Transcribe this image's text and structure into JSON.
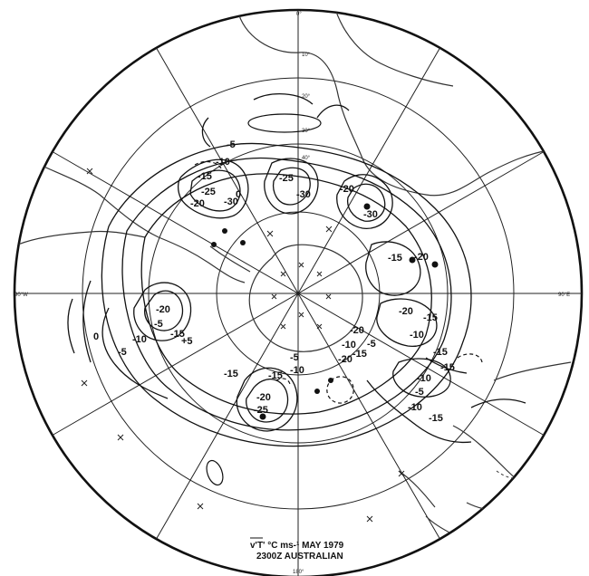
{
  "caption": {
    "line1": "v'T' °C ms-¹ MAY 1979",
    "line2": "2300Z AUSTRALIAN"
  },
  "longitude_labels": {
    "top": "0°",
    "bottom": "180°",
    "left": "90°W",
    "right": "90°E"
  },
  "latitude_labels": [
    "10°",
    "20°",
    "30°",
    "40°"
  ],
  "contour_labels": [
    "-5",
    "-10",
    "-15",
    "-25",
    "-30",
    "-20",
    "-25",
    "-30",
    "-20",
    "-30",
    "-15",
    "-20",
    "-20",
    "-15",
    "-10",
    "-15",
    "-20",
    "-5",
    "-10",
    "-15",
    "-20",
    "-5",
    "-10",
    "-15",
    "-5",
    "-10",
    "-15",
    "-20",
    "-25",
    "-15",
    "-10",
    "-5",
    "+5",
    "-15",
    "-20",
    "0",
    "0",
    "-5",
    "-10",
    "-15"
  ],
  "colors": {
    "ink": "#111111",
    "background": "#ffffff"
  }
}
